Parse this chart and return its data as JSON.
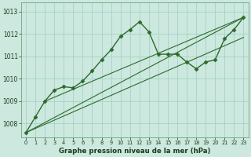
{
  "bg_color": "#cce8df",
  "grid_color": "#9ecfbe",
  "line_color": "#2d6a2d",
  "xlabel": "Graphe pression niveau de la mer (hPa)",
  "xlim": [
    -0.5,
    23.5
  ],
  "ylim": [
    1007.4,
    1013.4
  ],
  "yticks": [
    1008,
    1009,
    1010,
    1011,
    1012,
    1013
  ],
  "xticks": [
    0,
    1,
    2,
    3,
    4,
    5,
    6,
    7,
    8,
    9,
    10,
    11,
    12,
    13,
    14,
    15,
    16,
    17,
    18,
    19,
    20,
    21,
    22,
    23
  ],
  "series_main": {
    "x": [
      0,
      1,
      2,
      3,
      4,
      5,
      6,
      7,
      8,
      9,
      10,
      11,
      12,
      13,
      14,
      15,
      16,
      17,
      18,
      19,
      20,
      21,
      22,
      23
    ],
    "y": [
      1007.6,
      1008.3,
      1009.0,
      1009.5,
      1009.65,
      1009.6,
      1009.9,
      1010.35,
      1010.85,
      1011.3,
      1011.9,
      1012.2,
      1012.55,
      1012.1,
      1011.1,
      1011.1,
      1011.1,
      1010.75,
      1010.45,
      1010.75,
      1010.85,
      1011.8,
      1012.2,
      1012.75
    ]
  },
  "trend_lines": [
    {
      "x": [
        0,
        23
      ],
      "y": [
        1007.6,
        1012.75
      ]
    },
    {
      "x": [
        0,
        23
      ],
      "y": [
        1007.6,
        1011.85
      ]
    },
    {
      "x": [
        2,
        23
      ],
      "y": [
        1009.0,
        1012.75
      ]
    }
  ]
}
